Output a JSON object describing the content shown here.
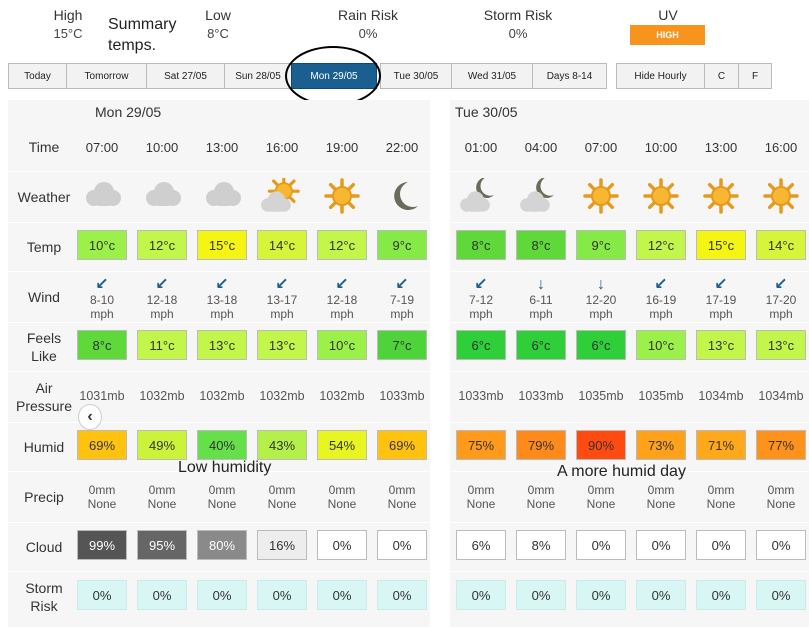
{
  "summary": {
    "high_label": "High",
    "high_value": "15°C",
    "low_label": "Low",
    "low_value": "8°C",
    "rain_label": "Rain Risk",
    "rain_value": "0%",
    "storm_label": "Storm Risk",
    "storm_value": "0%",
    "uv_label": "UV",
    "uv_value": "HIGH",
    "uv_color": "#f7941d"
  },
  "annotations": {
    "summary_temps": "Summary temps.",
    "low_humidity": "Low humidity",
    "humid_day": "A more humid day"
  },
  "tabs": [
    "Today",
    "Tomorrow",
    "Sat 27/05",
    "Sun 28/05",
    "Mon 29/05",
    "Tue 30/05",
    "Wed 31/05",
    "Days 8-14"
  ],
  "active_tab": "Mon 29/05",
  "options": [
    "Hide Hourly",
    "C",
    "F"
  ],
  "row_labels": {
    "time": "Time",
    "weather": "Weather",
    "temp": "Temp",
    "wind": "Wind",
    "feels_1": "Feels",
    "feels_2": "Like",
    "air_1": "Air",
    "air_2": "Pressure",
    "humid": "Humid",
    "precip": "Precip",
    "cloud": "Cloud",
    "storm_1": "Storm",
    "storm_2": "Risk"
  },
  "days": [
    {
      "title": "Mon 29/05",
      "hours": [
        {
          "time": "07:00",
          "weather": "cloud-icon",
          "temp": "10°c",
          "temp_color": "#9cf04a",
          "wind_dir": "↙",
          "wind": "8-10",
          "feels": "8°c",
          "feels_color": "#5fd83a",
          "pressure": "1031mb",
          "humid": "69%",
          "humid_color": "#ffc20e",
          "precip": "0mm",
          "precip_desc": "None",
          "cloud": "99%",
          "cloud_color": "#555555",
          "cloud_text": "#ffffff",
          "storm": "0%"
        },
        {
          "time": "10:00",
          "weather": "cloud-icon",
          "temp": "12°c",
          "temp_color": "#c2f64a",
          "wind_dir": "↙",
          "wind": "12-18",
          "feels": "11°c",
          "feels_color": "#c2f64a",
          "pressure": "1032mb",
          "humid": "49%",
          "humid_color": "#ccf33a",
          "precip": "0mm",
          "precip_desc": "None",
          "cloud": "95%",
          "cloud_color": "#666666",
          "cloud_text": "#ffffff",
          "storm": "0%"
        },
        {
          "time": "13:00",
          "weather": "cloud-icon",
          "temp": "15°c",
          "temp_color": "#f5f514",
          "wind_dir": "↙",
          "wind": "13-18",
          "feels": "13°c",
          "feels_color": "#c2f64a",
          "pressure": "1032mb",
          "humid": "40%",
          "humid_color": "#66e04a",
          "precip": "0mm",
          "precip_desc": "None",
          "cloud": "80%",
          "cloud_color": "#8a8a8a",
          "cloud_text": "#ffffff",
          "storm": "0%"
        },
        {
          "time": "16:00",
          "weather": "sun-cloud-icon",
          "temp": "14°c",
          "temp_color": "#d6f53a",
          "wind_dir": "↙",
          "wind": "13-17",
          "feels": "13°c",
          "feels_color": "#c2f64a",
          "pressure": "1032mb",
          "humid": "43%",
          "humid_color": "#b4f04a",
          "precip": "0mm",
          "precip_desc": "None",
          "cloud": "16%",
          "cloud_color": "#ededed",
          "cloud_text": "#333333",
          "storm": "0%"
        },
        {
          "time": "19:00",
          "weather": "sun-icon",
          "temp": "12°c",
          "temp_color": "#c2f64a",
          "wind_dir": "↙",
          "wind": "12-18",
          "feels": "10°c",
          "feels_color": "#9cf04a",
          "pressure": "1032mb",
          "humid": "54%",
          "humid_color": "#e8f520",
          "precip": "0mm",
          "precip_desc": "None",
          "cloud": "0%",
          "cloud_color": "#ffffff",
          "cloud_text": "#333333",
          "storm": "0%"
        },
        {
          "time": "22:00",
          "weather": "moon-icon",
          "temp": "9°c",
          "temp_color": "#86ea46",
          "wind_dir": "↙",
          "wind": "7-19",
          "feels": "7°c",
          "feels_color": "#4ed43a",
          "pressure": "1033mb",
          "humid": "69%",
          "humid_color": "#ffc20e",
          "precip": "0mm",
          "precip_desc": "None",
          "cloud": "0%",
          "cloud_color": "#ffffff",
          "cloud_text": "#333333",
          "storm": "0%"
        }
      ]
    },
    {
      "title": "Tue 30/05",
      "hours": [
        {
          "time": "01:00",
          "weather": "moon-cloud-icon",
          "temp": "8°c",
          "temp_color": "#5fd83a",
          "wind_dir": "↙",
          "wind": "7-12",
          "feels": "6°c",
          "feels_color": "#2fcf3a",
          "pressure": "1033mb",
          "humid": "75%",
          "humid_color": "#ff9a1a",
          "precip": "0mm",
          "precip_desc": "None",
          "cloud": "6%",
          "cloud_color": "#ffffff",
          "cloud_text": "#333333",
          "storm": "0%"
        },
        {
          "time": "04:00",
          "weather": "moon-cloud-icon",
          "temp": "8°c",
          "temp_color": "#5fd83a",
          "wind_dir": "↓",
          "wind": "6-11",
          "feels": "6°c",
          "feels_color": "#2fcf3a",
          "pressure": "1033mb",
          "humid": "79%",
          "humid_color": "#ff8a1a",
          "precip": "0mm",
          "precip_desc": "None",
          "cloud": "8%",
          "cloud_color": "#ffffff",
          "cloud_text": "#333333",
          "storm": "0%"
        },
        {
          "time": "07:00",
          "weather": "sun-icon",
          "temp": "9°c",
          "temp_color": "#86ea46",
          "wind_dir": "↓",
          "wind": "12-20",
          "feels": "6°c",
          "feels_color": "#2fcf3a",
          "pressure": "1035mb",
          "humid": "90%",
          "humid_color": "#ff4a10",
          "precip": "0mm",
          "precip_desc": "None",
          "cloud": "0%",
          "cloud_color": "#ffffff",
          "cloud_text": "#333333",
          "storm": "0%"
        },
        {
          "time": "10:00",
          "weather": "sun-icon",
          "temp": "12°c",
          "temp_color": "#c2f64a",
          "wind_dir": "↙",
          "wind": "16-19",
          "feels": "10°c",
          "feels_color": "#9cf04a",
          "pressure": "1035mb",
          "humid": "73%",
          "humid_color": "#ffa21a",
          "precip": "0mm",
          "precip_desc": "None",
          "cloud": "0%",
          "cloud_color": "#ffffff",
          "cloud_text": "#333333",
          "storm": "0%"
        },
        {
          "time": "13:00",
          "weather": "sun-icon",
          "temp": "15°c",
          "temp_color": "#f5f514",
          "wind_dir": "↙",
          "wind": "17-19",
          "feels": "13°c",
          "feels_color": "#c2f64a",
          "pressure": "1034mb",
          "humid": "71%",
          "humid_color": "#ffa81a",
          "precip": "0mm",
          "precip_desc": "None",
          "cloud": "0%",
          "cloud_color": "#ffffff",
          "cloud_text": "#333333",
          "storm": "0%"
        },
        {
          "time": "16:00",
          "weather": "sun-icon",
          "temp": "14°c",
          "temp_color": "#d6f53a",
          "wind_dir": "↙",
          "wind": "17-20",
          "feels": "13°c",
          "feels_color": "#c2f64a",
          "pressure": "1034mb",
          "humid": "77%",
          "humid_color": "#ff921a",
          "precip": "0mm",
          "precip_desc": "None",
          "cloud": "0%",
          "cloud_color": "#ffffff",
          "cloud_text": "#333333",
          "storm": "0%"
        }
      ]
    }
  ],
  "wind_unit": "mph",
  "storm_cell_color": "#d8f7f4",
  "nav_prev": "‹"
}
